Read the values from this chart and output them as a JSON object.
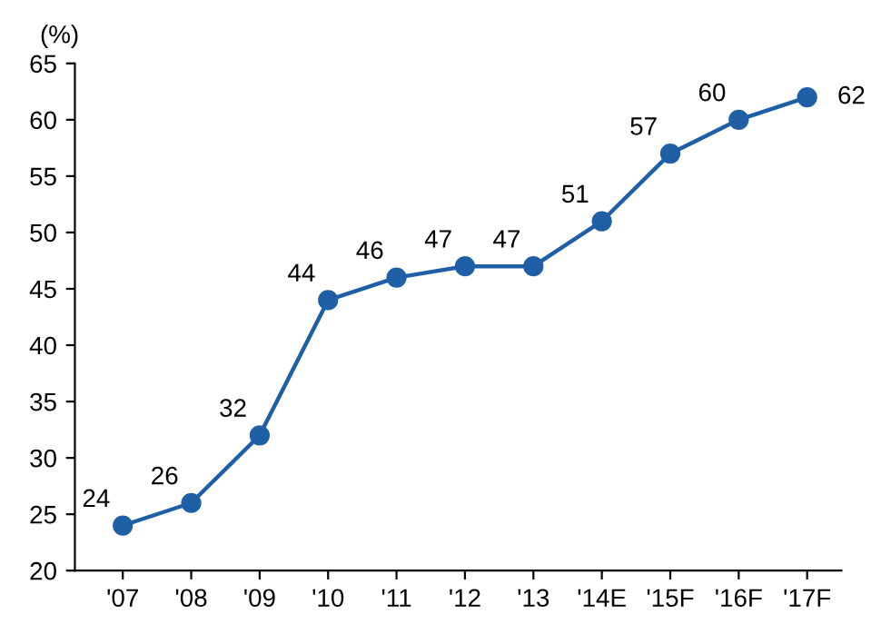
{
  "chart_data": {
    "type": "line",
    "ylabel": "(%)",
    "categories": [
      "'07",
      "'08",
      "'09",
      "'10",
      "'11",
      "'12",
      "'13",
      "'14E",
      "'15F",
      "'16F",
      "'17F"
    ],
    "series": [
      {
        "color": "#1f5fa6",
        "values": [
          24,
          26,
          32,
          44,
          46,
          47,
          47,
          51,
          57,
          60,
          62
        ]
      }
    ],
    "ylim": [
      20,
      65
    ],
    "yticks": [
      20,
      25,
      30,
      35,
      40,
      45,
      50,
      55,
      60,
      65
    ],
    "grid": false,
    "marker": "circle",
    "line_style": "solid",
    "data_labels": true
  }
}
